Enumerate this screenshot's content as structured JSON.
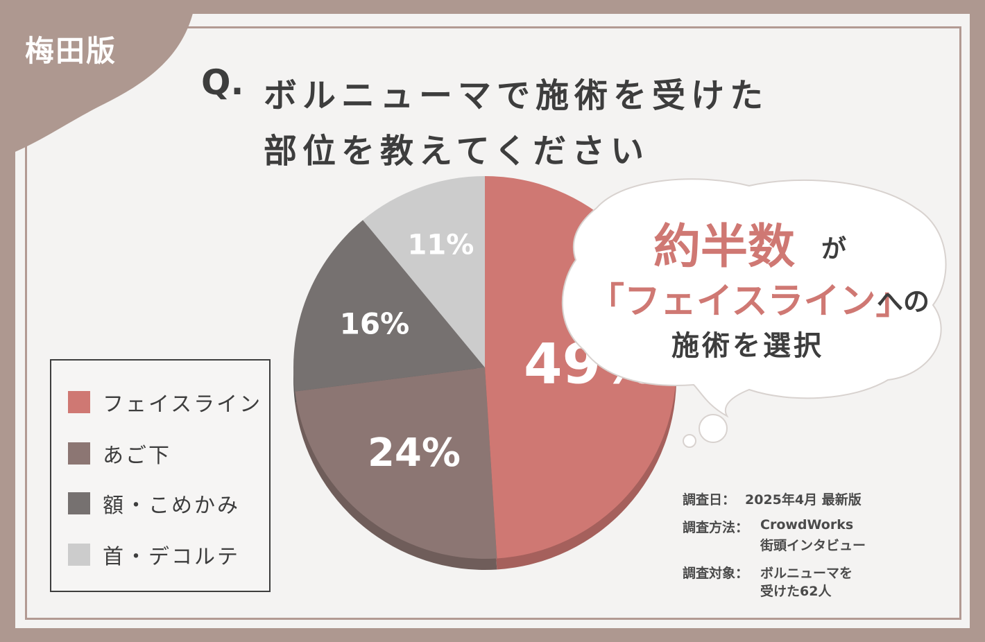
{
  "badge": "梅田版",
  "question": {
    "mark": "Q.",
    "line1": "ボルニューマで施術を受けた",
    "line2": "部位を教えてください"
  },
  "chart_data": {
    "type": "pie",
    "categories": [
      "フェイスライン",
      "あご下",
      "額・こめかみ",
      "首・デコルテ"
    ],
    "values": [
      49,
      24,
      16,
      11
    ],
    "labels": [
      "49%",
      "24%",
      "16%",
      "11%"
    ],
    "colors": [
      "#cf7873",
      "#8c7673",
      "#767170",
      "#cccccc"
    ],
    "title": "",
    "legend_position": "left"
  },
  "callout": {
    "emphasis": "約半数",
    "particle": "が",
    "highlight": "「フェイスライン」",
    "suffix": "への",
    "line3": "施術を選択",
    "accent_color": "#cf7873"
  },
  "survey": {
    "date_label": "調査日：",
    "date_value": "2025年4月 最新版",
    "method_label": "調査方法：",
    "method_value_1": "CrowdWorks",
    "method_value_2": "街頭インタビュー",
    "target_label": "調査対象：",
    "target_value_1": "ボルニューマを",
    "target_value_2": "受けた62人"
  }
}
